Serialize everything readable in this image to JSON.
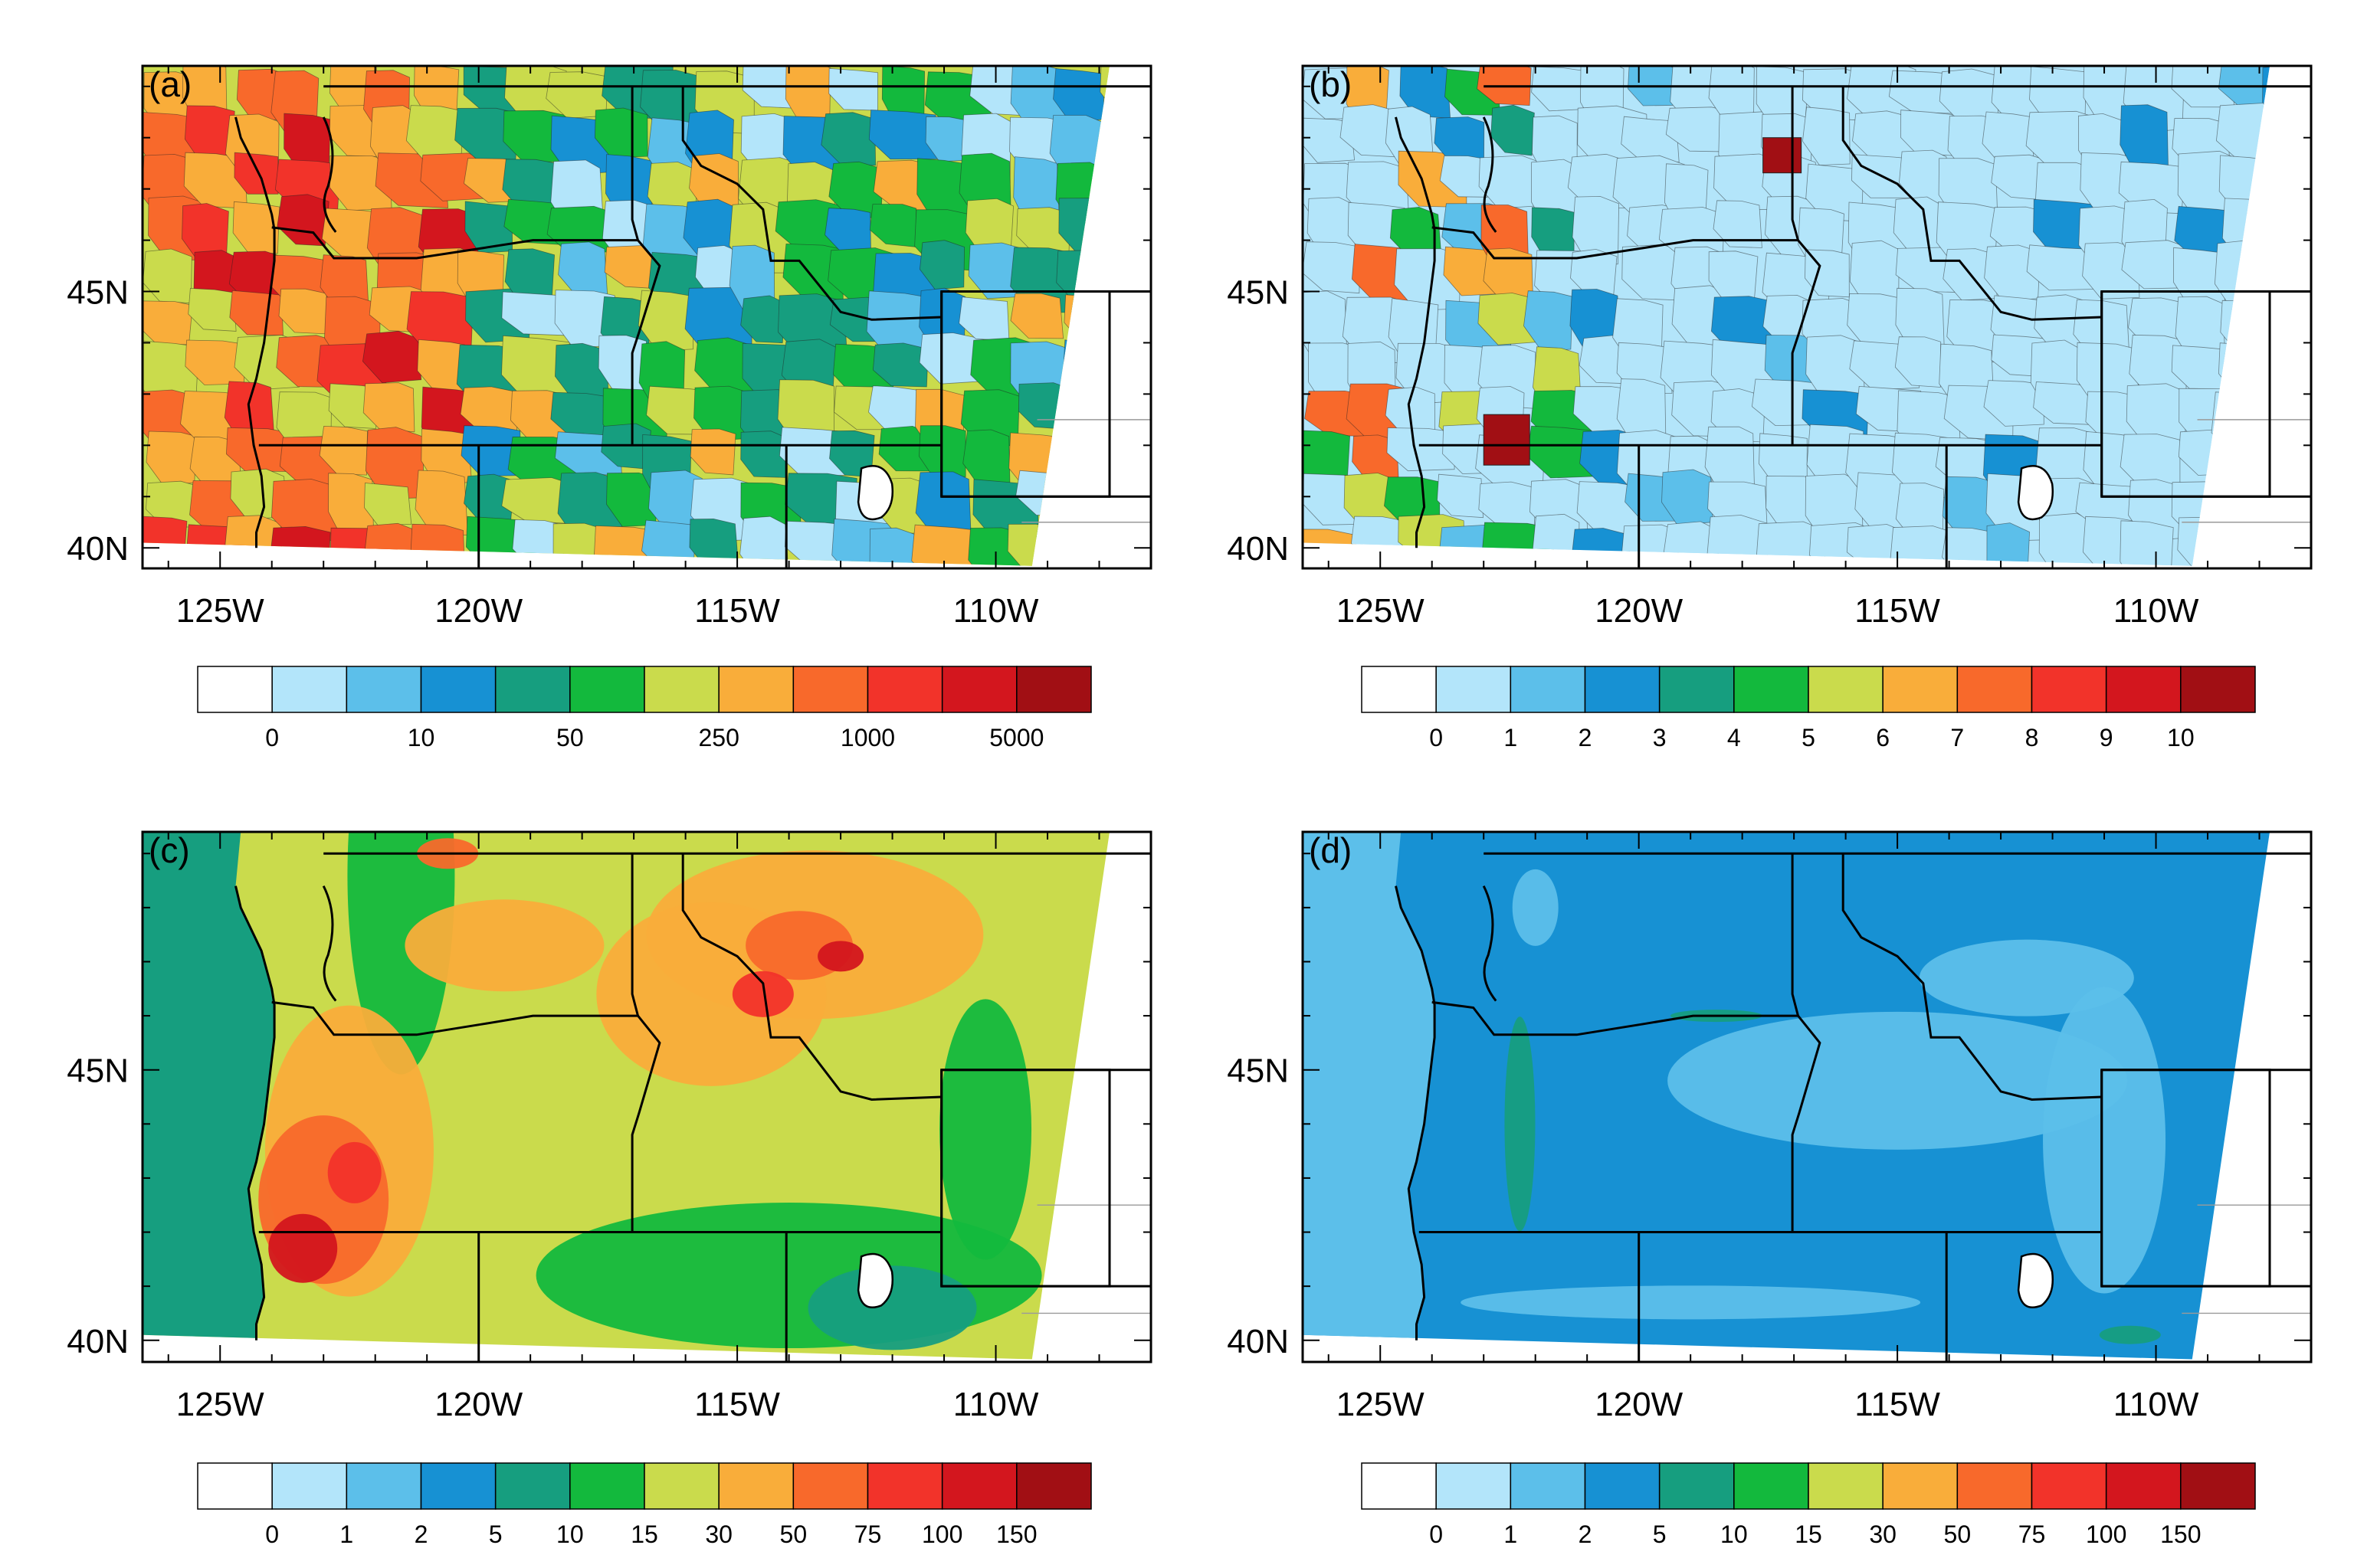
{
  "palette": [
    "#ffffff",
    "#b3e5fa",
    "#5cbfea",
    "#1791d3",
    "#169e7f",
    "#13b93d",
    "#cadb4c",
    "#f9ad3a",
    "#f8692b",
    "#f2332a",
    "#d3161e",
    "#a10f14"
  ],
  "map_extent": {
    "lon": [
      -126.5,
      -107.0
    ],
    "lat": [
      39.6,
      49.4
    ]
  },
  "lon_ticks": [
    -125,
    -120,
    -115,
    -110
  ],
  "lat_ticks": [
    45,
    40
  ],
  "lon_tick_labels": [
    "125W",
    "120W",
    "115W",
    "110W"
  ],
  "lat_tick_labels": [
    "45N",
    "40N"
  ],
  "panels": [
    {
      "id": "a",
      "label": "(a)",
      "kind": "polygon",
      "colorbar_labels": [
        "0",
        "10",
        "50",
        "250",
        "1000",
        "5000"
      ]
    },
    {
      "id": "b",
      "label": "(b)",
      "kind": "polygon",
      "colorbar_labels": [
        "0",
        "1",
        "2",
        "3",
        "4",
        "5",
        "6",
        "7",
        "8",
        "9",
        "10"
      ]
    },
    {
      "id": "c",
      "label": "(c)",
      "kind": "gridded",
      "colorbar_labels": [
        "0",
        "1",
        "2",
        "5",
        "10",
        "15",
        "30",
        "50",
        "75",
        "100",
        "150"
      ]
    },
    {
      "id": "d",
      "label": "(d)",
      "kind": "gridded",
      "colorbar_labels": [
        "0",
        "1",
        "2",
        "5",
        "10",
        "15",
        "30",
        "50",
        "75",
        "100",
        "150"
      ]
    }
  ]
}
